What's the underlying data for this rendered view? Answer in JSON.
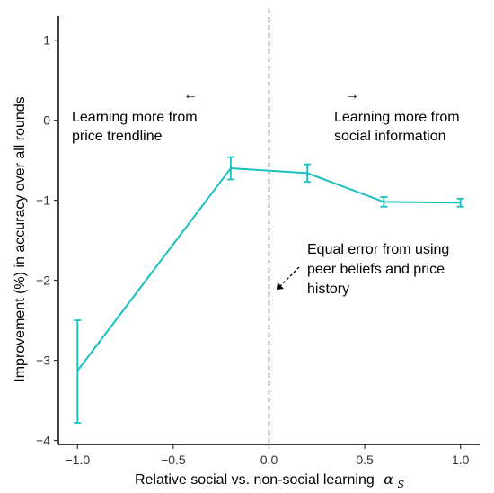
{
  "chart_data": {
    "type": "line",
    "title": "",
    "xlabel": "Relative social vs. non-social learning",
    "xlabel_symbol": "α",
    "xlabel_subscript": "S",
    "ylabel": "Improvement (%) in accuracy over all rounds",
    "xlim": [
      -1.1,
      1.1
    ],
    "ylim": [
      -4.05,
      1.3
    ],
    "x_ticks": [
      -1.0,
      -0.5,
      0.0,
      0.5,
      1.0
    ],
    "x_tick_labels": [
      "−1.0",
      "−0.5",
      "0.0",
      "0.5",
      "1.0"
    ],
    "y_ticks": [
      1,
      0,
      -1,
      -2,
      -3,
      -4
    ],
    "y_tick_labels": [
      "1",
      "0",
      "−1",
      "−2",
      "−3",
      "−4"
    ],
    "grid": false,
    "legend": "none",
    "series": [
      {
        "color": "#19BFBF",
        "x": [
          -1.0,
          -0.2,
          0.2,
          0.6,
          1.0
        ],
        "y": [
          -3.13,
          -0.6,
          -0.66,
          -1.02,
          -1.03
        ],
        "err_low": [
          -3.78,
          -0.74,
          -0.77,
          -1.08,
          -1.08
        ],
        "err_high": [
          -2.5,
          -0.46,
          -0.55,
          -0.96,
          -0.98
        ]
      }
    ],
    "reference_line": {
      "x": 0.0,
      "style": "dashed"
    },
    "annotations": {
      "left_arrow": "←",
      "right_arrow": "→",
      "left_text": [
        "Learning more from",
        "price trendline"
      ],
      "right_text": [
        "Learning more from",
        "social information"
      ],
      "equal_text": [
        "Equal error from using",
        "peer beliefs and price",
        "history"
      ]
    }
  }
}
